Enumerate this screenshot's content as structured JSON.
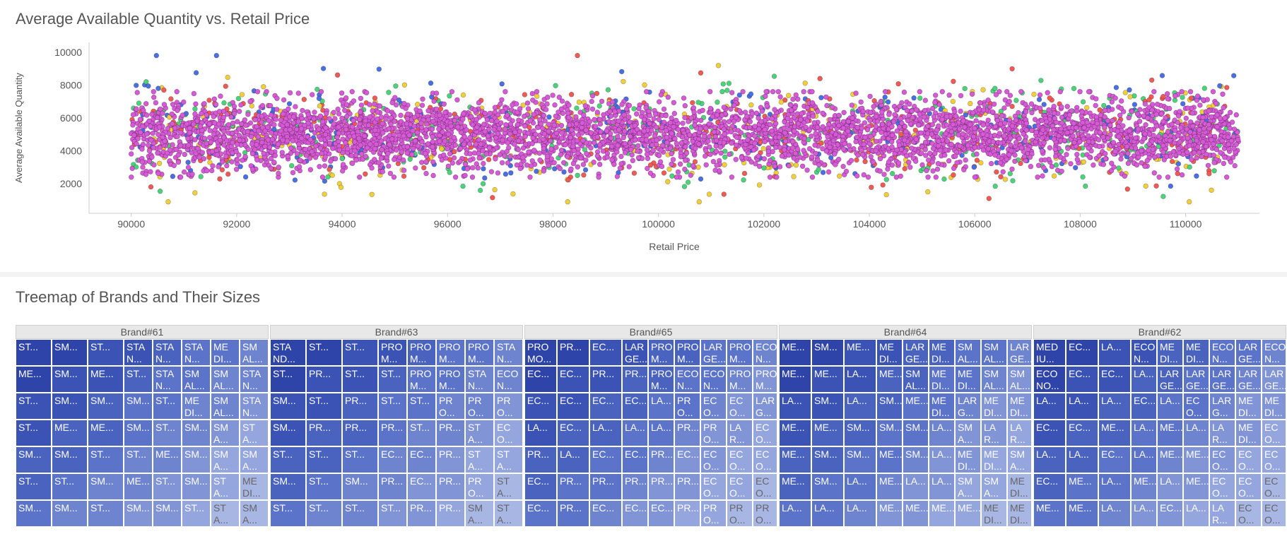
{
  "charts": {
    "scatter": {
      "title": "Average Available Quantity vs. Retail Price"
    },
    "treemap": {
      "title": "Treemap of Brands and Their Sizes"
    }
  },
  "chart_data": [
    {
      "type": "scatter",
      "title": "Average Available Quantity vs. Retail Price",
      "xlabel": "Retail Price",
      "ylabel": "Average Available Quantity",
      "xlim": [
        89200,
        111400
      ],
      "ylim": [
        200,
        10600
      ],
      "x_ticks": [
        90000,
        92000,
        94000,
        96000,
        98000,
        100000,
        102000,
        104000,
        106000,
        108000,
        110000
      ],
      "y_ticks": [
        2000,
        4000,
        6000,
        8000,
        10000
      ],
      "grid": false,
      "point_distribution": {
        "x_range": [
          90000,
          111000
        ],
        "y_core_range": [
          3000,
          7000
        ],
        "y_full_range": [
          900,
          9800
        ]
      },
      "series_colors": [
        "#d45bd4",
        "#4cd27a",
        "#f0cf3a",
        "#4a6fe0",
        "#ef5a55"
      ]
    },
    {
      "type": "treemap",
      "title": "Treemap of Brands and Their Sizes",
      "groups": [
        {
          "name": "Brand#61",
          "columns": [
            [
              "ST...",
              "ME...",
              "ST...",
              "ST...",
              "SM...",
              "ST...",
              "SM..."
            ],
            [
              "SM...",
              "SM...",
              "SM...",
              "ME...",
              "SM...",
              "ST...",
              "SM..."
            ],
            [
              "ST...",
              "ME...",
              "SM...",
              "ME...",
              "ST...",
              "SM...",
              "ST..."
            ],
            [
              [
                "STA\nN...",
                "ST...",
                "SM...",
                "SM...",
                "ST...",
                "ME...",
                "SM..."
              ]
            ],
            [
              [
                "STA\nN...",
                "STA\nN...",
                "ST...",
                "ST...",
                "ME...",
                "ST...",
                "SM..."
              ]
            ],
            [
              "STA\nN...",
              "SM\nAL...",
              "ME\nDI...",
              "SM...",
              "SM...",
              "SM...",
              "ST..."
            ],
            [
              "ME\nDI...",
              "SM\nAL...",
              "SM\nAL...",
              "SM\nA...",
              "SM\nA...",
              "ST\nA...",
              "ST\nA..."
            ],
            [
              "SM\nAL...",
              "STA\nN...",
              "STA\nN...",
              "ST\nA...",
              "SM\nA...",
              "ME\nDI...",
              "SM\nA..."
            ]
          ]
        },
        {
          "name": "Brand#63",
          "columns": [
            [
              "STA\nND...",
              "ST...",
              "SM...",
              "SM...",
              "ST...",
              "SM...",
              "ST..."
            ],
            [
              "ST...",
              "PR...",
              "ST...",
              "PR...",
              "ST...",
              "ST...",
              "ST..."
            ],
            [
              "ST...",
              "ST...",
              "PR...",
              "PR...",
              "ST...",
              "SM...",
              "ST..."
            ],
            [
              "PRO\nM...",
              "ST...",
              "ST...",
              "PR...",
              "EC...",
              "PR...",
              "ST..."
            ],
            [
              "PRO\nM...",
              "PRO\nM...",
              "ST...",
              "ST...",
              "EC...",
              "EC...",
              "PR..."
            ],
            [
              "PRO\nM...",
              "PRO\nM...",
              "PR\nO...",
              "PR...",
              "PR...",
              "PR...",
              "PR..."
            ],
            [
              "PRO\nM...",
              "STA\nN...",
              "PR\nO...",
              "ST\nA...",
              "ST\nA...",
              "PR\nO...",
              "SM\nA..."
            ],
            [
              "STA\nN...",
              "ECO\nN...",
              "PR\nO...",
              "EC\nO...",
              "ST\nA...",
              "ST\nA...",
              "ST\nA..."
            ]
          ]
        },
        {
          "name": "Brand#65",
          "columns": [
            [
              "PRO\nMO...",
              "EC...",
              "EC...",
              "LA...",
              "PR...",
              "EC...",
              "EC..."
            ],
            [
              "PR...",
              "EC...",
              "EC...",
              "EC...",
              "LA...",
              "PR...",
              "PR..."
            ],
            [
              "EC...",
              "PR...",
              "EC...",
              "LA...",
              "EC...",
              "PR...",
              "EC..."
            ],
            [
              "LAR\nGE...",
              "PR...",
              "EC...",
              "LA...",
              "EC...",
              "PR...",
              "EC..."
            ],
            [
              "PRO\nM...",
              "PRO\nM...",
              "LA...",
              "LA...",
              "PR...",
              "PR...",
              "EC..."
            ],
            [
              "PRO\nM...",
              "ECO\nN...",
              "PR\nO...",
              "PR...",
              "EC...",
              "PR...",
              "PR..."
            ],
            [
              "LAR\nGE...",
              "ECO\nN...",
              "EC\nO...",
              "PR\nO...",
              "EC\nO...",
              "EC\nO...",
              "PR\nO..."
            ],
            [
              "PRO\nM...",
              "PRO\nM...",
              "EC\nO...",
              "LA\nR...",
              "EC\nO...",
              "EC\nO...",
              "PR\nO..."
            ],
            [
              "ECO\nN...",
              "PRO\nM...",
              "LAR\nG...",
              "EC\nO...",
              "EC\nO...",
              "EC\nO...",
              "PR\nO..."
            ]
          ]
        },
        {
          "name": "Brand#64",
          "columns": [
            [
              "ME...",
              "ME...",
              "LA...",
              "ME...",
              "ME...",
              "ME...",
              "LA..."
            ],
            [
              "SM...",
              "ME...",
              "SM...",
              "ME...",
              "SM...",
              "SM...",
              "LA..."
            ],
            [
              "ME...",
              "LA...",
              "LA...",
              "SM...",
              "SM...",
              "LA...",
              "LA..."
            ],
            [
              "ME\nDI...",
              "ME...",
              "SM...",
              "SM...",
              "ME...",
              "ME...",
              "ME..."
            ],
            [
              "LAR\nGE...",
              "SM\nAL...",
              "ME...",
              "SM...",
              "SM...",
              "LA...",
              "ME..."
            ],
            [
              "ME\nDI...",
              "ME\nDI...",
              "ME\nDI...",
              "LA...",
              "LA...",
              "LA...",
              "ME..."
            ],
            [
              "SM\nAL...",
              "ME\nDI...",
              "LAR\nG...",
              "SM\nA...",
              "ME\nDI...",
              "SM\nA...",
              "ME..."
            ],
            [
              "SM\nAL...",
              "SM\nAL...",
              "ME\nDI...",
              "LA\nR...",
              "ME\nDI...",
              "SM\nA...",
              "ME\nDI..."
            ],
            [
              "LAR\nGE...",
              "SM\nAL...",
              "ME\nDI...",
              "LA\nR...",
              "SM\nA...",
              "ME\nDI...",
              "ME\nDI..."
            ]
          ]
        },
        {
          "name": "Brand#62",
          "columns": [
            [
              "MED\nIU...",
              "ECO\nNO...",
              "LA...",
              "EC...",
              "LA...",
              "EC...",
              "ME..."
            ],
            [
              "EC...",
              "EC...",
              "LA...",
              "EC...",
              "LA...",
              "ME...",
              "ME..."
            ],
            [
              "LA...",
              "EC...",
              "LA...",
              "ME...",
              "EC...",
              "LA...",
              "LA..."
            ],
            [
              "ECO\nN...",
              "LA...",
              "EC...",
              "LA...",
              "LA...",
              "ME...",
              "LA..."
            ],
            [
              "ME\nDI...",
              "LAR\nGE...",
              "LA...",
              "ME...",
              "ME...",
              "LA...",
              "EC..."
            ],
            [
              "ME\nDI...",
              "LAR\nGE...",
              "EC\nO...",
              "LA...",
              "ME...",
              "ME...",
              "LA..."
            ],
            [
              "ECO\nN...",
              "LAR\nGE...",
              "LAR\nG...",
              "LA\nR...",
              "EC\nO...",
              "EC\nO...",
              "LA\nR..."
            ],
            [
              "LAR\nGE...",
              "LAR\nGE...",
              "ME\nDI...",
              "ME\nDI...",
              "EC\nO...",
              "EC\nO...",
              "EC\nO..."
            ],
            [
              "ECO\nN...",
              "LAR\nGE...",
              "ME\nDI...",
              "EC\nO...",
              "EC\nO...",
              "EC\nO...",
              "EC\nO..."
            ]
          ]
        }
      ]
    }
  ]
}
